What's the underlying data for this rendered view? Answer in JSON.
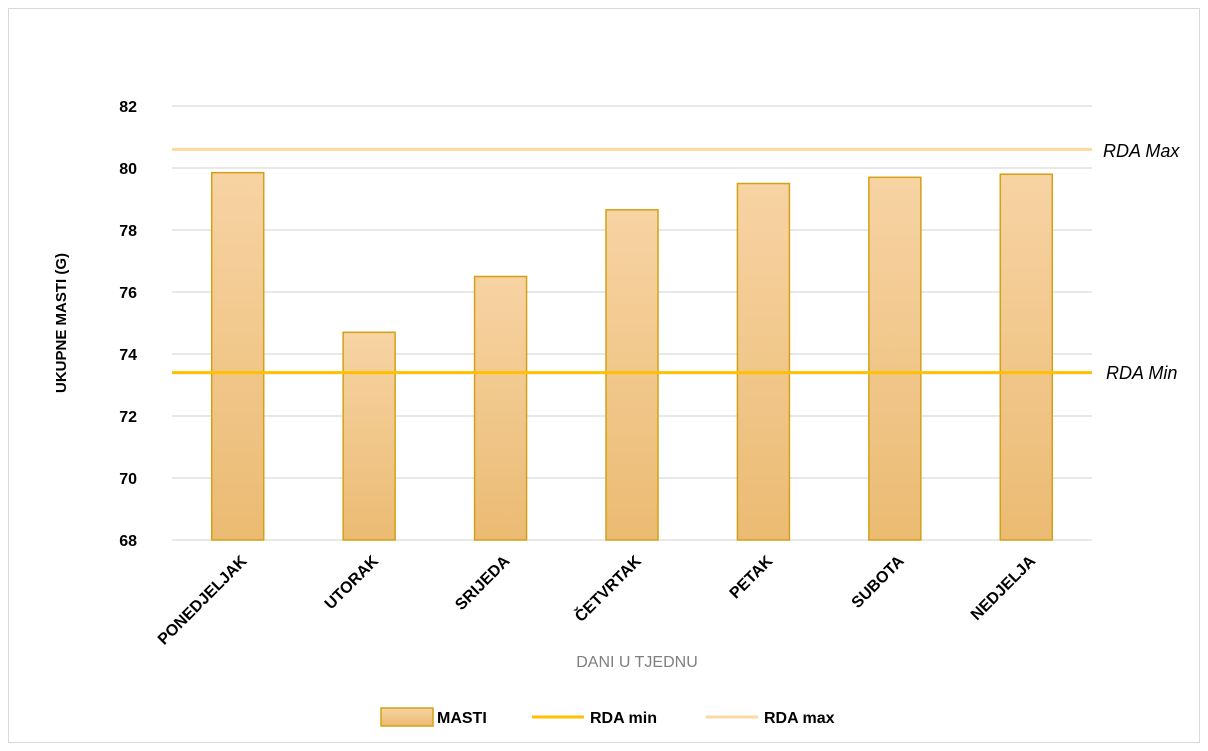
{
  "chart_data": {
    "type": "bar",
    "xlabel": "DANI U TJEDNU",
    "ylabel": "UKUPNE MASTI (G)",
    "ylim": [
      68,
      82
    ],
    "yticks": [
      68,
      70,
      72,
      74,
      76,
      78,
      80,
      82
    ],
    "grid": true,
    "legend_position": "bottom",
    "categories": [
      "PONEDJELJAK",
      "UTORAK",
      "SRIJEDA",
      "ČETVRTAK",
      "PETAK",
      "SUBOTA",
      "NEDJELJA"
    ],
    "series": [
      {
        "name": "MASTI",
        "type": "bar",
        "values": [
          79.85,
          74.7,
          76.5,
          78.65,
          79.5,
          79.7,
          79.8
        ],
        "color": "#f5cb92"
      },
      {
        "name": "RDA min",
        "type": "line",
        "value": 73.4,
        "color": "#ffc000"
      },
      {
        "name": "RDA max",
        "type": "line",
        "value": 80.6,
        "color": "#fcd9a1"
      }
    ],
    "annotations": [
      {
        "text": "RDA Max",
        "refers_to": "RDA max"
      },
      {
        "text": "RDA Min",
        "refers_to": "RDA min"
      }
    ],
    "colors": {
      "bar_fill_top": "#f7d3a3",
      "bar_fill_bottom": "#ebbb73",
      "bar_border": "#d4a017",
      "grid": "#d9d9d9"
    }
  }
}
